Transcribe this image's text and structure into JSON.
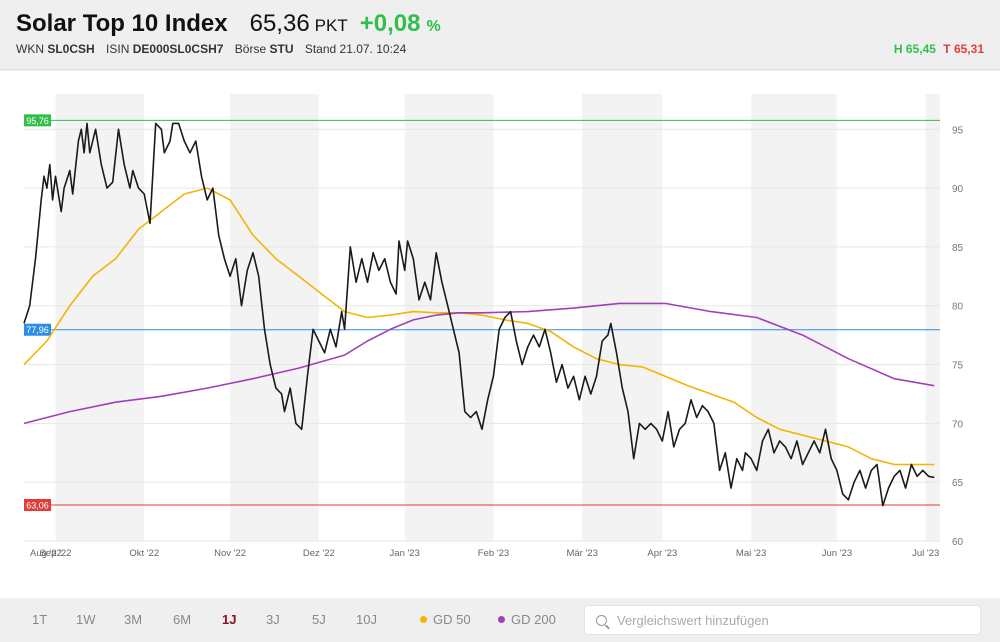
{
  "header": {
    "name": "Solar Top 10 Index",
    "price": "65,36",
    "unit": "PKT",
    "change": "+0,08",
    "change_pct": "%",
    "wkn_label": "WKN",
    "wkn": "SL0CSH",
    "isin_label": "ISIN",
    "isin": "DE000SL0CSH7",
    "exchange_label": "Börse",
    "exchange": "STU",
    "stand": "Stand 21.07. 10:24",
    "high": "H 65,45",
    "low": "T 65,31"
  },
  "footer": {
    "timeframes": [
      "1T",
      "1W",
      "3M",
      "6M",
      "1J",
      "3J",
      "5J",
      "10J"
    ],
    "active": "1J",
    "gd50_label": "GD 50",
    "gd200_label": "GD 200",
    "compare_placeholder": "Vergleichswert hinzufügen"
  },
  "colors": {
    "price": "#1a1a1a",
    "gd50": "#f5b400",
    "gd200": "#a040b8",
    "high_line": "#2fbf4a",
    "mid_line": "#2d8ee6",
    "low_line": "#e23b3b",
    "positive": "#2fbf4a",
    "active_tf": "#8b1020"
  },
  "chart_data": {
    "type": "line",
    "x_range": [
      "2022-07-21",
      "2023-07-21"
    ],
    "ylim": [
      60,
      98
    ],
    "y_ticks": [
      "95",
      "90",
      "85",
      "80",
      "75",
      "70",
      "65",
      "60"
    ],
    "month_labels": [
      "Aug '22",
      "Sep '22",
      "Okt '22",
      "Nov '22",
      "Dez '22",
      "Jan '23",
      "Feb '23",
      "Mär '23",
      "Apr '23",
      "Mai '23",
      "Jun '23",
      "Jul '23"
    ],
    "ref_lines": [
      {
        "label": "95,76",
        "value": 95.76,
        "color": "#2fbf4a"
      },
      {
        "label": "77,96",
        "value": 77.96,
        "color": "#2d8ee6"
      },
      {
        "label": "63,06",
        "value": 63.06,
        "color": "#e23b3b"
      }
    ],
    "series": [
      {
        "name": "",
        "values": [
          [
            0,
            78.5
          ],
          [
            2,
            80
          ],
          [
            4,
            84
          ],
          [
            6,
            89
          ],
          [
            7,
            91
          ],
          [
            8,
            90
          ],
          [
            9,
            92
          ],
          [
            10,
            89
          ],
          [
            11,
            91
          ],
          [
            13,
            88
          ],
          [
            14,
            90
          ],
          [
            16,
            91.5
          ],
          [
            17,
            89.5
          ],
          [
            19,
            94
          ],
          [
            20,
            95
          ],
          [
            21,
            93
          ],
          [
            22,
            95.5
          ],
          [
            23,
            93
          ],
          [
            25,
            95
          ],
          [
            27,
            92
          ],
          [
            29,
            90
          ],
          [
            31,
            90.5
          ],
          [
            33,
            95
          ],
          [
            35,
            92
          ],
          [
            37,
            90
          ],
          [
            38,
            91.5
          ],
          [
            40,
            90
          ],
          [
            42,
            89.5
          ],
          [
            44,
            87
          ],
          [
            46,
            95.5
          ],
          [
            48,
            95
          ],
          [
            49,
            93
          ],
          [
            51,
            94
          ],
          [
            52,
            95.5
          ],
          [
            54,
            95.5
          ],
          [
            56,
            94
          ],
          [
            58,
            93
          ],
          [
            60,
            94
          ],
          [
            62,
            91
          ],
          [
            64,
            89
          ],
          [
            66,
            90
          ],
          [
            68,
            86
          ],
          [
            70,
            84
          ],
          [
            72,
            82.5
          ],
          [
            74,
            84
          ],
          [
            76,
            80
          ],
          [
            78,
            83
          ],
          [
            80,
            84.5
          ],
          [
            82,
            82.5
          ],
          [
            84,
            78
          ],
          [
            86,
            75
          ],
          [
            88,
            73
          ],
          [
            90,
            72.5
          ],
          [
            91,
            71
          ],
          [
            93,
            73
          ],
          [
            95,
            70
          ],
          [
            97,
            69.5
          ],
          [
            99,
            74
          ],
          [
            101,
            78
          ],
          [
            103,
            77
          ],
          [
            105,
            76
          ],
          [
            107,
            78
          ],
          [
            109,
            76.5
          ],
          [
            111,
            79.5
          ],
          [
            112,
            78
          ],
          [
            114,
            85
          ],
          [
            116,
            82
          ],
          [
            118,
            84
          ],
          [
            120,
            82
          ],
          [
            122,
            84.5
          ],
          [
            124,
            83
          ],
          [
            126,
            84
          ],
          [
            128,
            82
          ],
          [
            130,
            81
          ],
          [
            131,
            85.5
          ],
          [
            133,
            83
          ],
          [
            134,
            85.5
          ],
          [
            136,
            84
          ],
          [
            138,
            80.5
          ],
          [
            140,
            82
          ],
          [
            142,
            80.5
          ],
          [
            144,
            84.5
          ],
          [
            146,
            82
          ],
          [
            148,
            80
          ],
          [
            150,
            78
          ],
          [
            152,
            76
          ],
          [
            154,
            71
          ],
          [
            156,
            70.5
          ],
          [
            158,
            71
          ],
          [
            160,
            69.5
          ],
          [
            162,
            72
          ],
          [
            164,
            74
          ],
          [
            166,
            78
          ],
          [
            168,
            79
          ],
          [
            170,
            79.5
          ],
          [
            172,
            77
          ],
          [
            174,
            75
          ],
          [
            176,
            76.5
          ],
          [
            178,
            77.5
          ],
          [
            180,
            76.5
          ],
          [
            182,
            78
          ],
          [
            184,
            76
          ],
          [
            186,
            73.5
          ],
          [
            188,
            75
          ],
          [
            190,
            73
          ],
          [
            192,
            74
          ],
          [
            194,
            72
          ],
          [
            196,
            74
          ],
          [
            198,
            72.5
          ],
          [
            200,
            74
          ],
          [
            202,
            77
          ],
          [
            204,
            77.5
          ],
          [
            205,
            78.5
          ],
          [
            207,
            76
          ],
          [
            209,
            73
          ],
          [
            211,
            71
          ],
          [
            213,
            67
          ],
          [
            215,
            70
          ],
          [
            217,
            69.5
          ],
          [
            219,
            70
          ],
          [
            221,
            69.5
          ],
          [
            223,
            68.5
          ],
          [
            225,
            71
          ],
          [
            227,
            68
          ],
          [
            229,
            69.5
          ],
          [
            231,
            70
          ],
          [
            233,
            72
          ],
          [
            235,
            70.5
          ],
          [
            237,
            71.5
          ],
          [
            239,
            71
          ],
          [
            241,
            70
          ],
          [
            243,
            66
          ],
          [
            245,
            67.5
          ],
          [
            247,
            64.5
          ],
          [
            249,
            67
          ],
          [
            251,
            66
          ],
          [
            252,
            67.5
          ],
          [
            254,
            67
          ],
          [
            256,
            66
          ],
          [
            258,
            68.5
          ],
          [
            260,
            69.5
          ],
          [
            262,
            67.5
          ],
          [
            264,
            68.5
          ],
          [
            266,
            68
          ],
          [
            268,
            67
          ],
          [
            270,
            68.5
          ],
          [
            272,
            66.5
          ],
          [
            274,
            67.5
          ],
          [
            276,
            68.5
          ],
          [
            278,
            67.5
          ],
          [
            280,
            69.5
          ],
          [
            282,
            67
          ],
          [
            284,
            66
          ],
          [
            286,
            64
          ],
          [
            288,
            63.5
          ],
          [
            290,
            65
          ],
          [
            292,
            66
          ],
          [
            294,
            64.5
          ],
          [
            296,
            66
          ],
          [
            298,
            66.5
          ],
          [
            300,
            63
          ],
          [
            302,
            64.5
          ],
          [
            304,
            65.5
          ],
          [
            306,
            66
          ],
          [
            308,
            64.5
          ],
          [
            310,
            66.5
          ],
          [
            312,
            65.5
          ],
          [
            314,
            66
          ],
          [
            316,
            65.5
          ],
          [
            318,
            65.4
          ]
        ]
      },
      {
        "name": "GD 50",
        "values": [
          [
            0,
            75
          ],
          [
            8,
            77
          ],
          [
            16,
            80
          ],
          [
            24,
            82.5
          ],
          [
            32,
            84
          ],
          [
            40,
            86.5
          ],
          [
            48,
            88
          ],
          [
            56,
            89.5
          ],
          [
            64,
            90
          ],
          [
            72,
            89
          ],
          [
            80,
            86
          ],
          [
            88,
            84
          ],
          [
            96,
            82.5
          ],
          [
            104,
            81
          ],
          [
            112,
            79.5
          ],
          [
            120,
            79
          ],
          [
            128,
            79.2
          ],
          [
            136,
            79.5
          ],
          [
            144,
            79.4
          ],
          [
            152,
            79.4
          ],
          [
            160,
            79.2
          ],
          [
            168,
            78.8
          ],
          [
            176,
            78.5
          ],
          [
            184,
            77.8
          ],
          [
            192,
            76.5
          ],
          [
            200,
            75.5
          ],
          [
            208,
            75
          ],
          [
            216,
            74.8
          ],
          [
            224,
            74
          ],
          [
            232,
            73.2
          ],
          [
            240,
            72.5
          ],
          [
            248,
            71.8
          ],
          [
            256,
            70.5
          ],
          [
            264,
            69.5
          ],
          [
            272,
            69
          ],
          [
            280,
            68.5
          ],
          [
            288,
            68
          ],
          [
            296,
            67
          ],
          [
            304,
            66.5
          ],
          [
            312,
            66.5
          ],
          [
            318,
            66.5
          ]
        ]
      },
      {
        "name": "GD 200",
        "values": [
          [
            0,
            70
          ],
          [
            16,
            71
          ],
          [
            32,
            71.8
          ],
          [
            48,
            72.3
          ],
          [
            64,
            73
          ],
          [
            80,
            73.8
          ],
          [
            96,
            74.7
          ],
          [
            112,
            75.8
          ],
          [
            120,
            77
          ],
          [
            128,
            78
          ],
          [
            136,
            78.8
          ],
          [
            144,
            79.2
          ],
          [
            152,
            79.4
          ],
          [
            160,
            79.4
          ],
          [
            176,
            79.5
          ],
          [
            192,
            79.8
          ],
          [
            208,
            80.2
          ],
          [
            224,
            80.2
          ],
          [
            240,
            79.5
          ],
          [
            256,
            79
          ],
          [
            272,
            77.5
          ],
          [
            288,
            75.5
          ],
          [
            304,
            73.8
          ],
          [
            318,
            73.2
          ]
        ]
      }
    ]
  }
}
